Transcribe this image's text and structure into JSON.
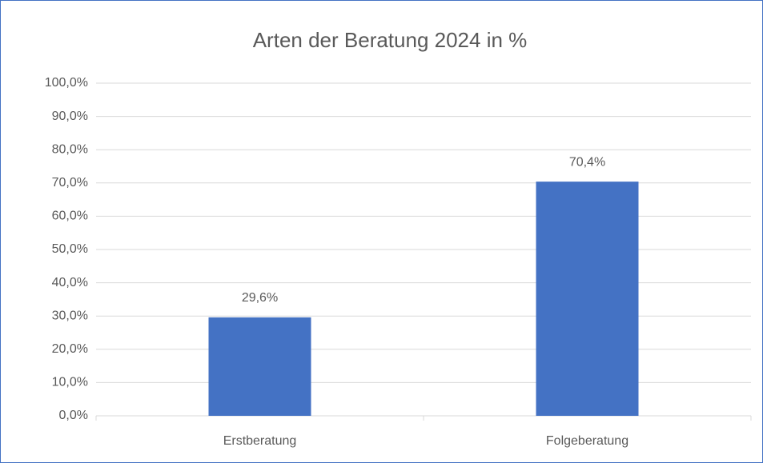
{
  "chart_data": {
    "type": "bar",
    "title": "Arten der Beratung 2024 in %",
    "categories": [
      "Erstberatung",
      "Folgeberatung"
    ],
    "values": [
      29.6,
      70.4
    ],
    "value_labels": [
      "29,6%",
      "70,4%"
    ],
    "color": "#4472c4",
    "ylim": [
      0,
      100
    ],
    "yticks": [
      {
        "value": 0,
        "label": "0,0%"
      },
      {
        "value": 10,
        "label": "10,0%"
      },
      {
        "value": 20,
        "label": "20,0%"
      },
      {
        "value": 30,
        "label": "30,0%"
      },
      {
        "value": 40,
        "label": "40,0%"
      },
      {
        "value": 50,
        "label": "50,0%"
      },
      {
        "value": 60,
        "label": "60,0%"
      },
      {
        "value": 70,
        "label": "70,0%"
      },
      {
        "value": 80,
        "label": "80,0%"
      },
      {
        "value": 90,
        "label": "90,0%"
      },
      {
        "value": 100,
        "label": "100,0%"
      }
    ],
    "grid": true
  }
}
